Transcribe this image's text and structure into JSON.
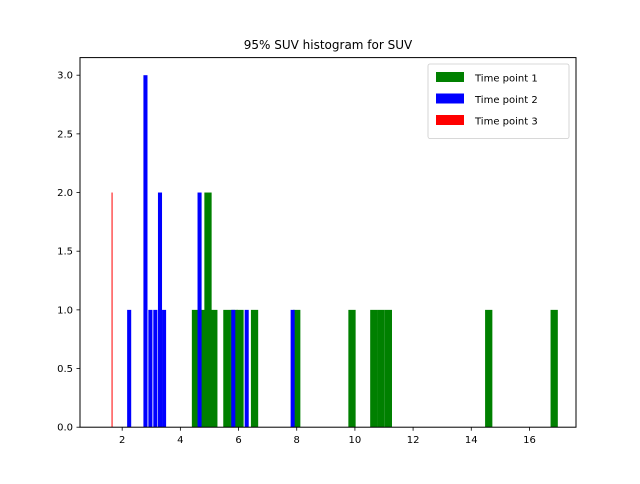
{
  "chart_data": {
    "type": "bar",
    "title": "95% SUV histogram for SUV",
    "xlabel": "",
    "ylabel": "",
    "xlim": [
      0.55,
      17.6
    ],
    "ylim": [
      0,
      3.15
    ],
    "x_ticks": [
      2,
      4,
      6,
      8,
      10,
      12,
      14,
      16
    ],
    "x_tick_labels": [
      "2",
      "4",
      "6",
      "8",
      "10",
      "12",
      "14",
      "16"
    ],
    "y_ticks": [
      0.0,
      0.5,
      1.0,
      1.5,
      2.0,
      2.5,
      3.0
    ],
    "y_tick_labels": [
      "0.0",
      "0.5",
      "1.0",
      "1.5",
      "2.0",
      "2.5",
      "3.0"
    ],
    "grid": false,
    "legend_position": "top-right",
    "series": [
      {
        "name": "Time point 1",
        "color": "#008000",
        "bin_width": 0.25,
        "bins": [
          {
            "x": 4.52,
            "count": 1
          },
          {
            "x": 4.75,
            "count": 1
          },
          {
            "x": 4.95,
            "count": 2
          },
          {
            "x": 5.15,
            "count": 1
          },
          {
            "x": 5.6,
            "count": 1
          },
          {
            "x": 5.85,
            "count": 1
          },
          {
            "x": 6.05,
            "count": 1
          },
          {
            "x": 6.55,
            "count": 1
          },
          {
            "x": 8.0,
            "count": 1
          },
          {
            "x": 9.9,
            "count": 1
          },
          {
            "x": 10.65,
            "count": 1
          },
          {
            "x": 10.9,
            "count": 1
          },
          {
            "x": 11.15,
            "count": 1
          },
          {
            "x": 14.6,
            "count": 1
          },
          {
            "x": 16.85,
            "count": 1
          }
        ]
      },
      {
        "name": "Time point 2",
        "color": "#0000ff",
        "bin_width": 0.14,
        "bins": [
          {
            "x": 2.24,
            "count": 1
          },
          {
            "x": 2.8,
            "count": 3
          },
          {
            "x": 2.97,
            "count": 1
          },
          {
            "x": 3.14,
            "count": 1
          },
          {
            "x": 3.3,
            "count": 2
          },
          {
            "x": 3.44,
            "count": 1
          },
          {
            "x": 4.66,
            "count": 2
          },
          {
            "x": 5.82,
            "count": 1
          },
          {
            "x": 6.28,
            "count": 1
          },
          {
            "x": 7.86,
            "count": 1
          }
        ]
      },
      {
        "name": "Time point 3",
        "color": "#ff0000",
        "bin_width": 0.03,
        "bins": [
          {
            "x": 1.65,
            "count": 2
          }
        ]
      }
    ]
  }
}
